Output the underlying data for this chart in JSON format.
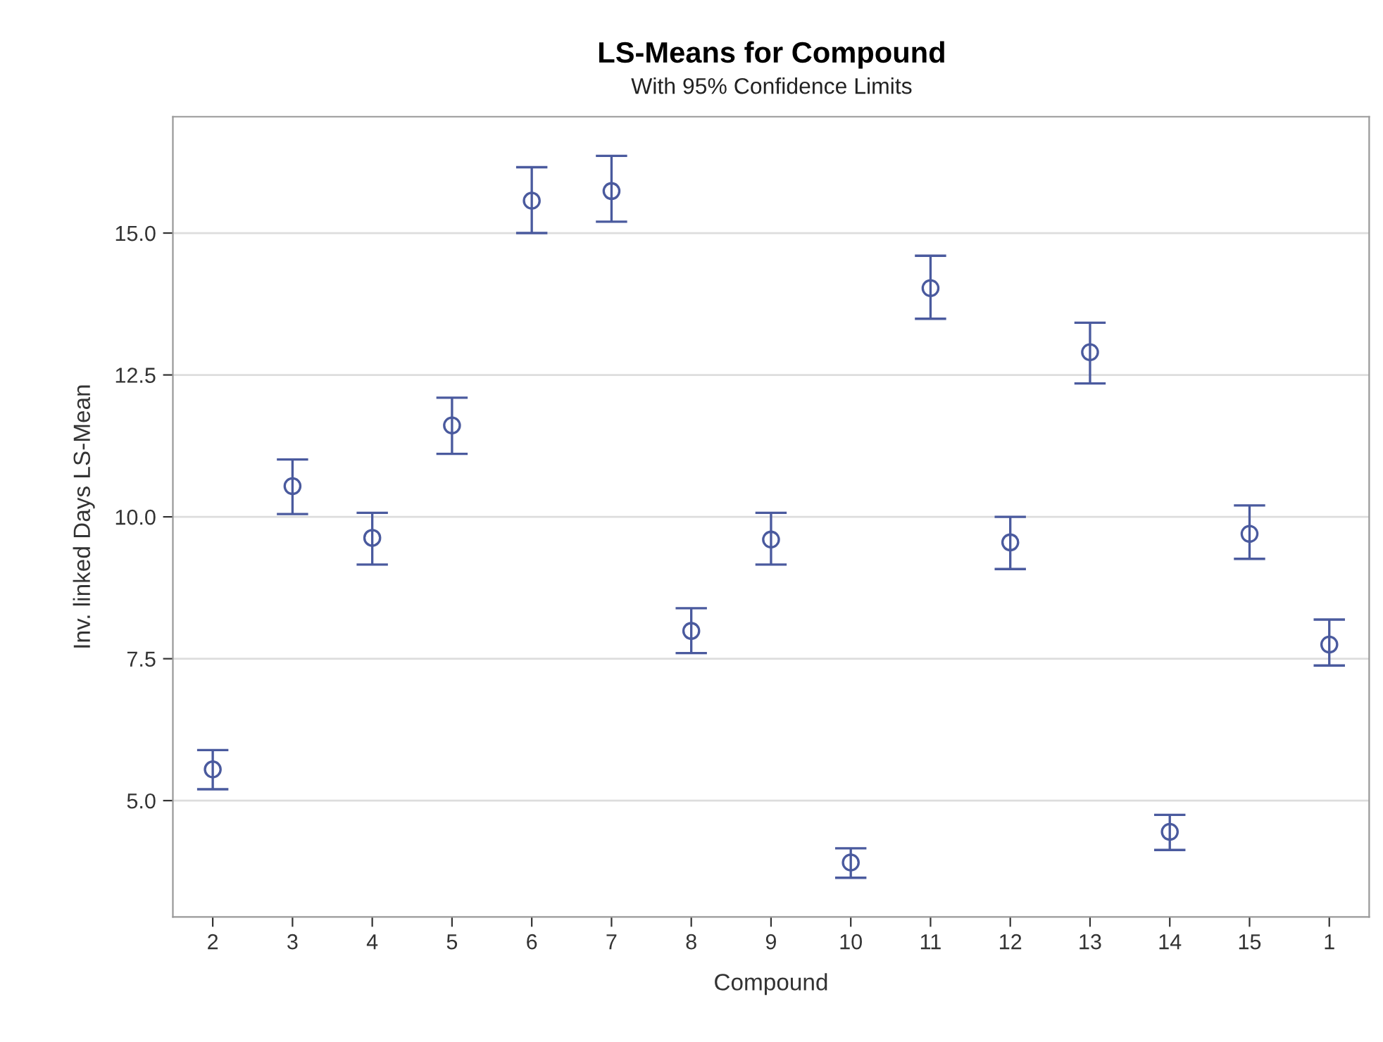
{
  "chart_data": {
    "type": "scatter",
    "title": "LS-Means for Compound",
    "subtitle": "With 95% Confidence Limits",
    "xlabel": "Compound",
    "ylabel": "Inv. linked Days LS-Mean",
    "categories": [
      "2",
      "3",
      "4",
      "5",
      "6",
      "7",
      "8",
      "9",
      "10",
      "11",
      "12",
      "13",
      "14",
      "15",
      "1"
    ],
    "series": [
      {
        "color": "#4a5a9e",
        "values": [
          5.55,
          10.54,
          9.63,
          11.61,
          15.57,
          15.74,
          7.99,
          9.6,
          3.91,
          14.03,
          9.55,
          12.9,
          4.45,
          9.7,
          7.75
        ],
        "errors": [
          [
            5.2,
            5.89
          ],
          [
            10.05,
            11.01
          ],
          [
            9.16,
            10.07
          ],
          [
            11.11,
            12.1
          ],
          [
            15.0,
            16.16
          ],
          [
            15.2,
            16.36
          ],
          [
            7.6,
            8.39
          ],
          [
            9.16,
            10.07
          ],
          [
            3.64,
            4.16
          ],
          [
            13.49,
            14.6
          ],
          [
            9.08,
            10.0
          ],
          [
            12.35,
            13.42
          ],
          [
            4.13,
            4.75
          ],
          [
            9.26,
            10.2
          ],
          [
            7.38,
            8.19
          ]
        ]
      }
    ],
    "ylim": [
      2.95,
      17.05
    ],
    "yticks": [
      {
        "value": 5,
        "label": "5.0"
      },
      {
        "value": 7.5,
        "label": "7.5"
      },
      {
        "value": 10,
        "label": "10.0"
      },
      {
        "value": 12.5,
        "label": "12.5"
      },
      {
        "value": 15,
        "label": "15.0"
      }
    ],
    "grid": "y",
    "marker": "circle"
  }
}
